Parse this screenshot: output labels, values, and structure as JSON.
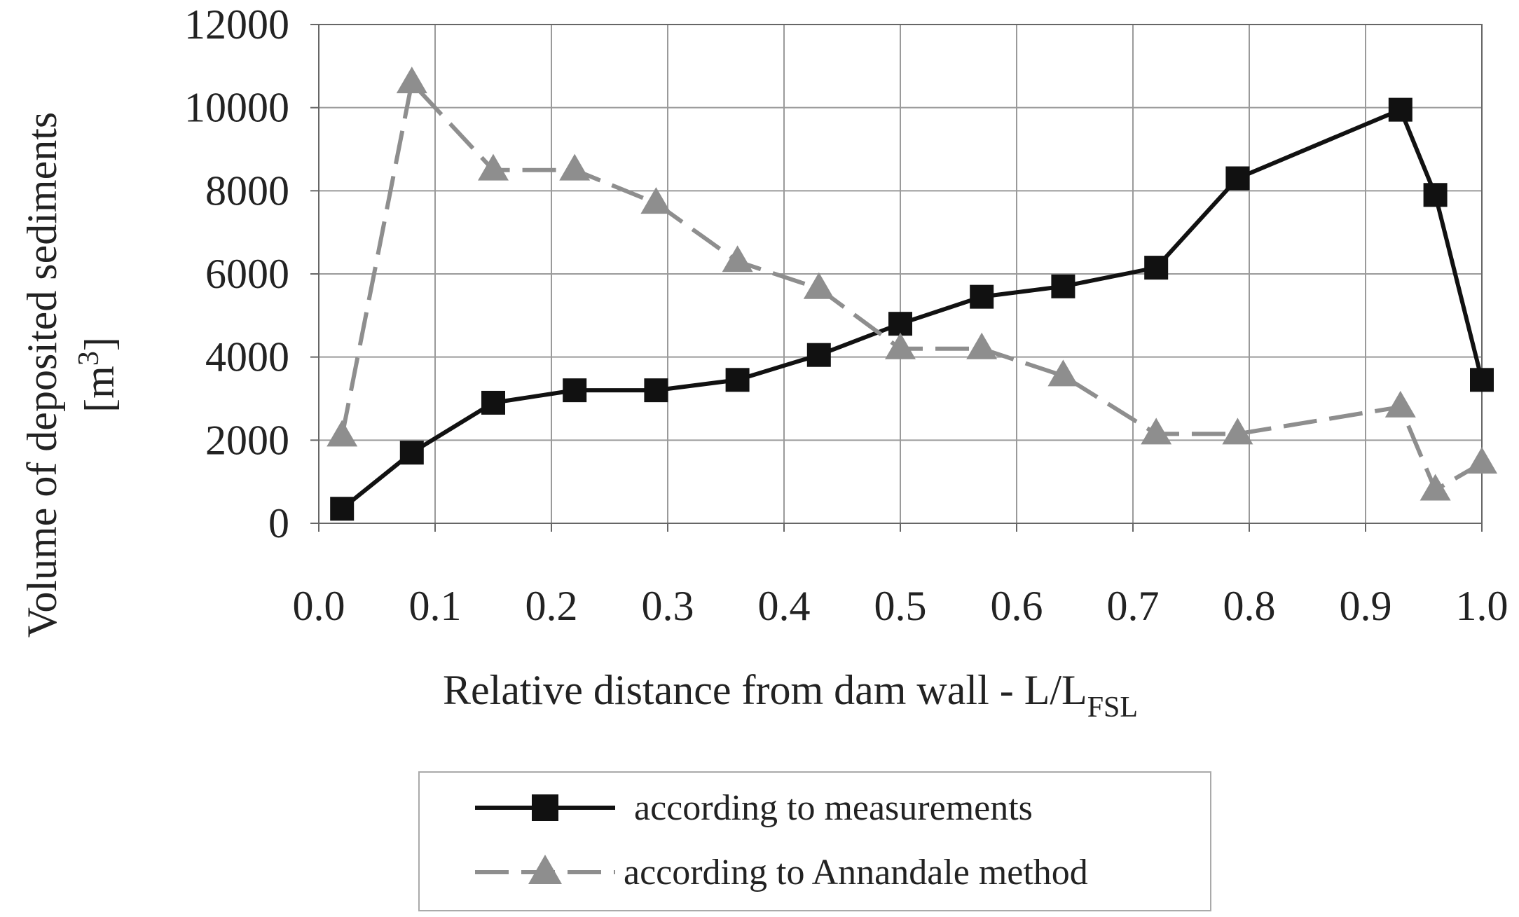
{
  "chart_data": {
    "type": "line",
    "xlabel_main": "Relative distance from dam wall - L/L",
    "xlabel_sub": "FSL",
    "ylabel_line1": "Volume of deposited sediments",
    "ylabel_line2_pre": "[m",
    "ylabel_line2_sup": "3",
    "ylabel_line2_post": "]",
    "xlim": [
      0.0,
      1.0
    ],
    "ylim": [
      0,
      12000
    ],
    "xticks": [
      "0.0",
      "0.1",
      "0.2",
      "0.3",
      "0.4",
      "0.5",
      "0.6",
      "0.7",
      "0.8",
      "0.9",
      "1.0"
    ],
    "yticks": [
      "0",
      "2000",
      "4000",
      "6000",
      "8000",
      "10000",
      "12000"
    ],
    "grid": true,
    "legend_position": "bottom",
    "series": [
      {
        "name": "according to measurements",
        "color": "#111111",
        "marker": "square",
        "dash": "solid",
        "x": [
          0.02,
          0.08,
          0.15,
          0.22,
          0.29,
          0.36,
          0.43,
          0.5,
          0.57,
          0.64,
          0.72,
          0.79,
          0.93,
          0.96,
          1.0
        ],
        "y": [
          350,
          1700,
          2900,
          3200,
          3200,
          3450,
          4050,
          4800,
          5450,
          5700,
          6150,
          8300,
          9950,
          7900,
          3450
        ]
      },
      {
        "name": "according to Annandale method",
        "color": "#8e8e8e",
        "marker": "triangle",
        "dash": "dashed",
        "x": [
          0.02,
          0.08,
          0.15,
          0.22,
          0.29,
          0.36,
          0.43,
          0.5,
          0.57,
          0.64,
          0.72,
          0.79,
          0.93,
          0.96,
          1.0
        ],
        "y": [
          2100,
          10600,
          8500,
          8500,
          7700,
          6300,
          5650,
          4200,
          4200,
          3550,
          2150,
          2150,
          2800,
          800,
          1450
        ]
      }
    ]
  }
}
